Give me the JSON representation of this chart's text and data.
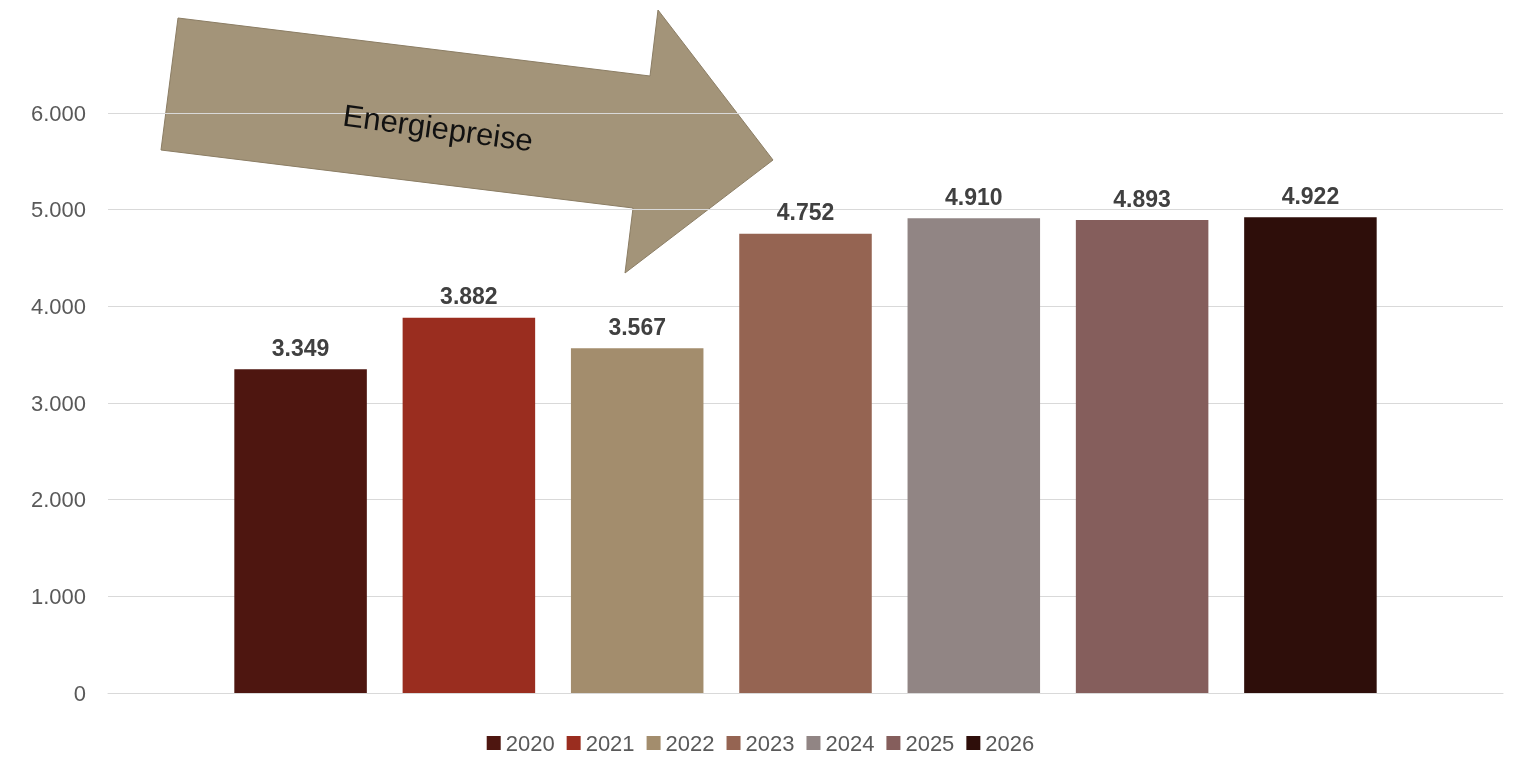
{
  "chart_data": {
    "type": "bar",
    "categories": [
      null
    ],
    "series": [
      {
        "name": "2020",
        "color": "#4e1610",
        "values": [
          3349
        ],
        "value_labels": [
          "3.349"
        ]
      },
      {
        "name": "2021",
        "color": "#9a2d1f",
        "values": [
          3882
        ],
        "value_labels": [
          "3.882"
        ]
      },
      {
        "name": "2022",
        "color": "#a38d6d",
        "values": [
          3567
        ],
        "value_labels": [
          "3.567"
        ]
      },
      {
        "name": "2023",
        "color": "#956452",
        "values": [
          4752
        ],
        "value_labels": [
          "4.752"
        ]
      },
      {
        "name": "2024",
        "color": "#918584",
        "values": [
          4910
        ],
        "value_labels": [
          "4.910"
        ]
      },
      {
        "name": "2025",
        "color": "#855e5c",
        "values": [
          4893
        ],
        "value_labels": [
          "4.893"
        ]
      },
      {
        "name": "2026",
        "color": "#2e0e0a",
        "values": [
          4922
        ],
        "value_labels": [
          "4.922"
        ]
      }
    ],
    "ylim": [
      0,
      6000
    ],
    "yticks": [
      {
        "value": 0,
        "label": "0"
      },
      {
        "value": 1000,
        "label": "1.000"
      },
      {
        "value": 2000,
        "label": "2.000"
      },
      {
        "value": 3000,
        "label": "3.000"
      },
      {
        "value": 4000,
        "label": "4.000"
      },
      {
        "value": 5000,
        "label": "5.000"
      },
      {
        "value": 6000,
        "label": "6.000"
      }
    ],
    "grid": "y",
    "legend": "bottom",
    "tick_labels": "y",
    "annotations": [
      "Energiepreise"
    ]
  }
}
